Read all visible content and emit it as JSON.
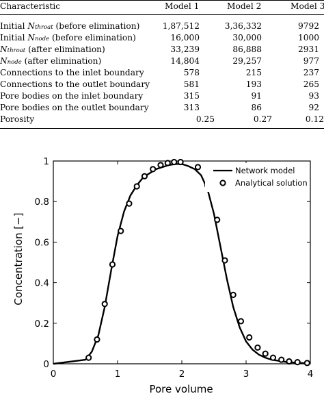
{
  "table": {
    "header": {
      "characteristic": "Characteristic",
      "model1": "Model 1",
      "model2": "Model 2",
      "model3": "Model 3"
    },
    "rows": [
      {
        "pre": "Initial ",
        "sym": "N",
        "sub": "throat",
        "post": " (before elimination)",
        "m1": "1,87,512",
        "m2": "3,36,332",
        "m3": "9792"
      },
      {
        "pre": "Initial ",
        "sym": "N",
        "sub": "node",
        "post": " (before elimination)",
        "m1": "16,000",
        "m2": "30,000",
        "m3": "1000"
      },
      {
        "pre": "",
        "sym": "N",
        "sub": "throat",
        "post": " (after elimination)",
        "m1": "33,239",
        "m2": "86,888",
        "m3": "2931"
      },
      {
        "pre": "",
        "sym": "N",
        "sub": "node",
        "post": " (after elimination)",
        "m1": "14,804",
        "m2": "29,257",
        "m3": "977"
      },
      {
        "label": "Connections to the inlet boundary",
        "m1": "578",
        "m2": "215",
        "m3": "237"
      },
      {
        "label": "Connections to the outlet boundary",
        "m1": "581",
        "m2": "193",
        "m3": "265"
      },
      {
        "label": "Pore bodies on the inlet boundary",
        "m1": "315",
        "m2": "91",
        "m3": "93"
      },
      {
        "label": "Pore bodies on the outlet boundary",
        "m1": "313",
        "m2": "86",
        "m3": "92"
      },
      {
        "label": "Porosity",
        "m1": "0.25",
        "m2": "0.27",
        "m3": "0.12"
      }
    ]
  },
  "chart_data": {
    "type": "line",
    "xlabel": "Pore volume",
    "ylabel": "Concentration [−]",
    "xlim": [
      0,
      4
    ],
    "ylim": [
      0,
      1
    ],
    "xticks": [
      "0",
      "1",
      "2",
      "3",
      "4"
    ],
    "yticks": [
      "0",
      "0.2",
      "0.4",
      "0.6",
      "0.8",
      "1"
    ],
    "legend_position": "top-right",
    "series": [
      {
        "name": "Network model",
        "style": "line",
        "color": "#000000",
        "x": [
          0,
          0.5,
          0.6,
          0.7,
          0.8,
          0.9,
          1.0,
          1.1,
          1.2,
          1.3,
          1.4,
          1.5,
          1.6,
          1.7,
          1.8,
          1.9,
          2.0,
          2.1,
          2.2,
          2.3,
          2.4,
          2.5,
          2.6,
          2.7,
          2.8,
          2.9,
          3.0,
          3.1,
          3.2,
          3.3,
          3.4,
          3.5,
          3.6,
          3.7,
          3.8,
          3.9,
          4.0
        ],
        "y": [
          0,
          0.02,
          0.06,
          0.14,
          0.28,
          0.46,
          0.63,
          0.75,
          0.83,
          0.88,
          0.92,
          0.94,
          0.96,
          0.97,
          0.98,
          0.985,
          0.985,
          0.975,
          0.96,
          0.93,
          0.86,
          0.74,
          0.58,
          0.42,
          0.28,
          0.18,
          0.11,
          0.07,
          0.045,
          0.03,
          0.02,
          0.015,
          0.01,
          0.007,
          0.005,
          0.003,
          0.002
        ]
      },
      {
        "name": "Analytical solution",
        "style": "markers",
        "color": "#000000",
        "x": [
          0.55,
          0.68,
          0.8,
          0.92,
          1.05,
          1.18,
          1.3,
          1.42,
          1.55,
          1.67,
          1.78,
          1.88,
          1.98,
          2.25,
          2.4,
          2.55,
          2.67,
          2.8,
          2.92,
          3.05,
          3.18,
          3.3,
          3.42,
          3.55,
          3.67,
          3.8,
          3.95
        ],
        "y": [
          0.03,
          0.12,
          0.295,
          0.49,
          0.655,
          0.79,
          0.875,
          0.925,
          0.96,
          0.98,
          0.99,
          0.995,
          0.995,
          0.97,
          0.88,
          0.71,
          0.51,
          0.34,
          0.21,
          0.13,
          0.08,
          0.05,
          0.03,
          0.02,
          0.012,
          0.008,
          0.004
        ]
      }
    ]
  }
}
